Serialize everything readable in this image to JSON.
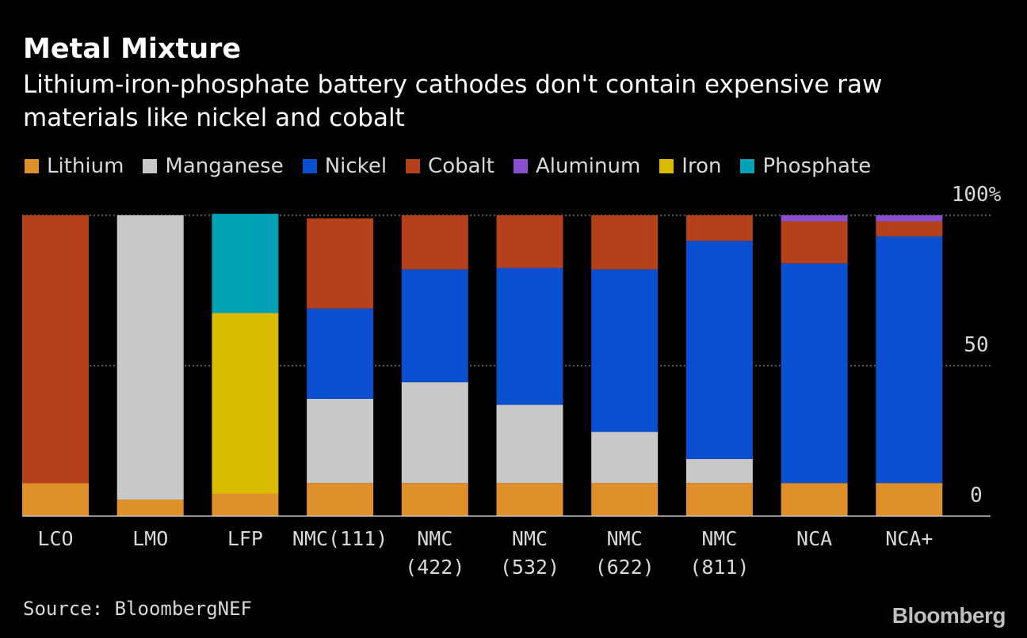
{
  "header": {
    "title": "Metal Mixture",
    "subtitle": "Lithium-iron-phosphate battery cathodes don't contain expensive raw materials like nickel and cobalt"
  },
  "footer": {
    "source": "Source: BloombergNEF",
    "brand": "Bloomberg"
  },
  "chart_data": {
    "type": "bar",
    "stacked": true,
    "title": "Metal Mixture",
    "subtitle": "Lithium-iron-phosphate battery cathodes don't contain expensive raw materials like nickel and cobalt",
    "categories": [
      "LCO",
      "LMO",
      "LFP",
      "NMC(111)",
      "NMC (422)",
      "NMC (532)",
      "NMC (622)",
      "NMC (811)",
      "NCA",
      "NCA+"
    ],
    "category_lines": [
      [
        "LCO"
      ],
      [
        "LMO"
      ],
      [
        "LFP"
      ],
      [
        "NMC(111)"
      ],
      [
        "NMC",
        "(422)"
      ],
      [
        "NMC",
        "(532)"
      ],
      [
        "NMC",
        "(622)"
      ],
      [
        "NMC",
        "(811)"
      ],
      [
        "NCA"
      ],
      [
        "NCA+"
      ]
    ],
    "series": [
      {
        "name": "Lithium",
        "color": "#e0902a",
        "values": [
          11,
          5.5,
          7.5,
          11,
          11,
          11,
          11,
          11,
          11,
          11
        ]
      },
      {
        "name": "Manganese",
        "color": "#c8c8c8",
        "values": [
          0,
          94.5,
          0,
          28,
          33.5,
          26,
          17,
          8,
          0,
          0
        ]
      },
      {
        "name": "Nickel",
        "color": "#0a4fd0",
        "values": [
          0,
          0,
          0,
          30,
          37.5,
          45.5,
          54,
          72.5,
          73,
          82
        ]
      },
      {
        "name": "Cobalt",
        "color": "#b5401c",
        "values": [
          89,
          0,
          0,
          30,
          18,
          17.5,
          18,
          8.5,
          14,
          5
        ]
      },
      {
        "name": "Aluminum",
        "color": "#8a4fcf",
        "values": [
          0,
          0,
          0,
          0,
          0,
          0,
          0,
          0,
          2,
          2
        ]
      },
      {
        "name": "Iron",
        "color": "#d9bc00",
        "values": [
          0,
          0,
          60,
          0,
          0,
          0,
          0,
          0,
          0,
          0
        ]
      },
      {
        "name": "Phosphate",
        "color": "#00a0b5",
        "values": [
          0,
          0,
          33,
          0,
          0,
          0,
          0,
          0,
          0,
          0
        ]
      }
    ],
    "y_ticks": [
      "100%",
      "50",
      "0"
    ],
    "y_tick_values": [
      100,
      50,
      0
    ],
    "ylim": [
      0,
      100
    ],
    "grid": true,
    "legend_position": "top-left"
  }
}
